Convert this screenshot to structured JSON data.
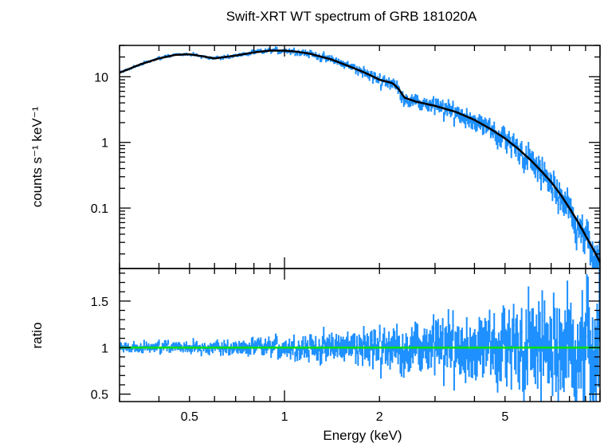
{
  "chart_data": [
    {
      "type": "scatter",
      "panel": "spectrum",
      "title": "Swift-XRT WT spectrum of GRB 181020A",
      "xlabel": "Energy (keV)",
      "ylabel": "counts s⁻¹ keV⁻¹",
      "xscale": "log",
      "yscale": "log",
      "xlim": [
        0.3,
        10
      ],
      "ylim": [
        0.012,
        30
      ],
      "yticks": [
        {
          "value": 0.1,
          "label": "0.1"
        },
        {
          "value": 1,
          "label": "1"
        },
        {
          "value": 10,
          "label": "10"
        }
      ],
      "model": {
        "x": [
          0.3,
          0.35,
          0.4,
          0.45,
          0.5,
          0.55,
          0.6,
          0.7,
          0.8,
          0.9,
          1.0,
          1.1,
          1.2,
          1.4,
          1.6,
          1.8,
          2.0,
          2.2,
          2.3,
          2.4,
          2.6,
          3.0,
          3.5,
          4.0,
          4.5,
          5.0,
          5.5,
          6.0,
          6.5,
          7.0,
          7.5,
          8.0,
          8.5,
          9.0,
          9.5,
          10.0
        ],
        "y": [
          11.5,
          15.5,
          19.0,
          21.5,
          22.0,
          20.5,
          19.0,
          21.0,
          23.5,
          25.0,
          25.0,
          24.0,
          22.5,
          18.5,
          14.5,
          11.5,
          9.0,
          8.0,
          6.5,
          4.8,
          4.2,
          3.6,
          2.9,
          2.2,
          1.6,
          1.15,
          0.8,
          0.55,
          0.37,
          0.25,
          0.16,
          0.1,
          0.062,
          0.038,
          0.024,
          0.015
        ]
      },
      "series_color": "#1e90ff",
      "model_color": "#000000"
    },
    {
      "type": "scatter",
      "panel": "ratio",
      "xlabel": "Energy (keV)",
      "ylabel": "ratio",
      "xscale": "log",
      "xlim": [
        0.3,
        10
      ],
      "ylim": [
        0.42,
        1.85
      ],
      "xticks": [
        {
          "value": 0.5,
          "label": "0.5"
        },
        {
          "value": 1,
          "label": "1"
        },
        {
          "value": 2,
          "label": "2"
        },
        {
          "value": 5,
          "label": "5"
        }
      ],
      "yticks": [
        {
          "value": 0.5,
          "label": "0.5"
        },
        {
          "value": 1,
          "label": "1"
        },
        {
          "value": 1.5,
          "label": "1.5"
        }
      ],
      "reference_line": 1,
      "reference_color": "#00e000",
      "series_color": "#1e90ff"
    }
  ]
}
